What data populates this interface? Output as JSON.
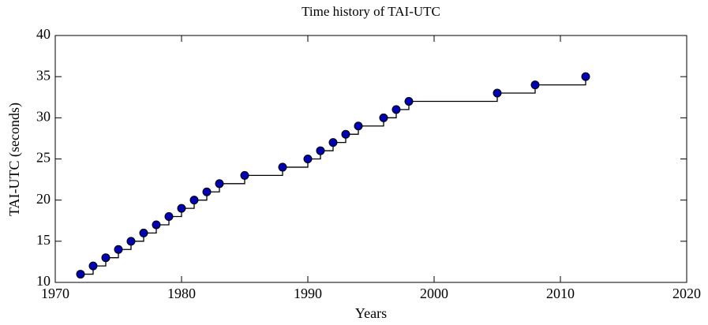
{
  "chart_data": {
    "type": "line",
    "drawstyle": "steps-post",
    "title": "Time history of TAI-UTC",
    "xlabel": "Years",
    "ylabel": "TAI-UTC (seconds)",
    "x": [
      1972,
      1973,
      1974,
      1975,
      1976,
      1977,
      1978,
      1979,
      1980,
      1981,
      1982,
      1983,
      1985,
      1988,
      1990,
      1991,
      1992,
      1993,
      1994,
      1996,
      1997,
      1998,
      2005,
      2008,
      2012
    ],
    "series": [
      {
        "name": "TAI-UTC",
        "color": "#0000b0",
        "line_color": "#000000",
        "values": [
          11,
          12,
          13,
          14,
          15,
          16,
          17,
          18,
          19,
          20,
          21,
          22,
          23,
          24,
          25,
          26,
          27,
          28,
          29,
          30,
          31,
          32,
          33,
          34,
          35
        ]
      }
    ],
    "xlim": [
      1970,
      2020
    ],
    "xticks": [
      1970,
      1980,
      1990,
      2000,
      2010,
      2020
    ],
    "ylim": [
      10,
      40
    ],
    "yticks": [
      10,
      15,
      20,
      25,
      30,
      35,
      40
    ],
    "grid": false
  }
}
